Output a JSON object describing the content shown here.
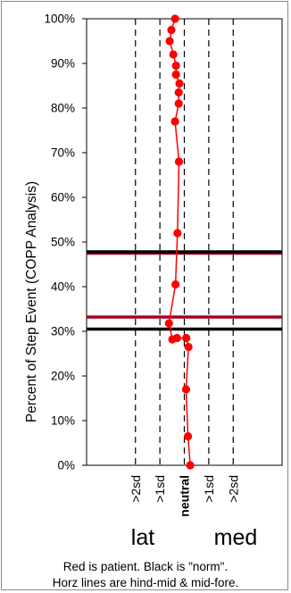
{
  "chart_data": {
    "type": "line",
    "ylabel": "Percent of Step Event (COPP Analysis)",
    "yticks": [
      "0%",
      "10%",
      "20%",
      "30%",
      "40%",
      "50%",
      "60%",
      "70%",
      "80%",
      "90%",
      "100%"
    ],
    "ylim": [
      0,
      100
    ],
    "xlim": [
      -5,
      3
    ],
    "xticks": [
      {
        "value": -3,
        "label": ">2sd",
        "bold": false
      },
      {
        "value": -2,
        "label": ">1sd",
        "bold": false
      },
      {
        "value": -1,
        "label": "neutral",
        "bold": true
      },
      {
        "value": 0,
        "label": ">1sd",
        "bold": false
      },
      {
        "value": 1,
        "label": ">2sd",
        "bold": false
      }
    ],
    "direction_labels": {
      "left": "lat",
      "right": "med"
    },
    "grid": "vertical dashed at each x tick",
    "series": [
      {
        "color": "#ff0000",
        "points": [
          {
            "x": -0.76,
            "y": 0
          },
          {
            "x": -0.85,
            "y": 6.5
          },
          {
            "x": -0.93,
            "y": 17
          },
          {
            "x": -0.83,
            "y": 26.5
          },
          {
            "x": -0.92,
            "y": 28.5
          },
          {
            "x": -1.3,
            "y": 28.5
          },
          {
            "x": -1.49,
            "y": 28.2
          },
          {
            "x": -1.63,
            "y": 31.8
          },
          {
            "x": -1.36,
            "y": 40.5
          },
          {
            "x": -1.28,
            "y": 52
          },
          {
            "x": -1.22,
            "y": 68
          },
          {
            "x": -1.38,
            "y": 77
          },
          {
            "x": -1.23,
            "y": 81
          },
          {
            "x": -1.23,
            "y": 83.5
          },
          {
            "x": -1.2,
            "y": 85.5
          },
          {
            "x": -1.34,
            "y": 87.5
          },
          {
            "x": -1.34,
            "y": 89.5
          },
          {
            "x": -1.45,
            "y": 92
          },
          {
            "x": -1.6,
            "y": 95
          },
          {
            "x": -1.53,
            "y": 97.5
          },
          {
            "x": -1.38,
            "y": 100
          }
        ]
      }
    ],
    "horizontal_lines": [
      {
        "y": 47.5,
        "color": "#a50021"
      },
      {
        "y": 47.8,
        "color": "#000000"
      },
      {
        "y": 33.2,
        "color": "#a50021"
      },
      {
        "y": 30.5,
        "color": "#000000"
      }
    ],
    "footnote": [
      "Red is patient.   Black is \"norm\".",
      "Horz lines are hind-mid & mid-fore."
    ]
  }
}
